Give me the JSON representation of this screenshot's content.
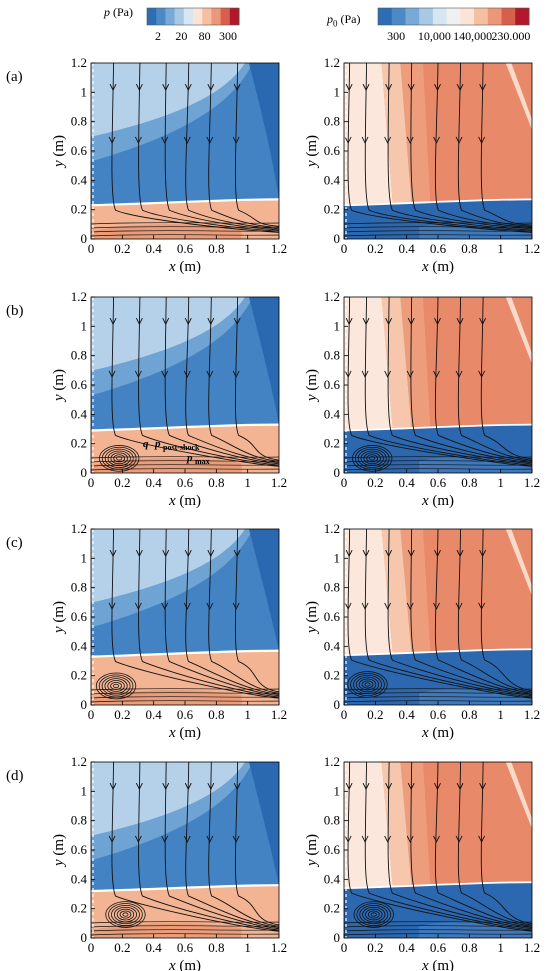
{
  "colorbars": [
    {
      "label_sym": "p",
      "label_sub": "",
      "label_unit": " (Pa)",
      "colors": [
        "#2c6db3",
        "#4c8ac6",
        "#79aad7",
        "#a7c9e6",
        "#d6e6f3",
        "#fbe3d6",
        "#f5bfa0",
        "#ec967a",
        "#d6604d",
        "#b2182b"
      ],
      "ticks": [
        "2",
        "20",
        "80",
        "300"
      ]
    },
    {
      "label_sym": "p",
      "label_sub": "0",
      "label_unit": " (Pa)",
      "colors": [
        "#2c6db3",
        "#4c8ac6",
        "#79aad7",
        "#a7c9e6",
        "#d6e6f3",
        "#f0f0f0",
        "#fbe3d6",
        "#f5bfa0",
        "#ec967a",
        "#d6604d",
        "#b2182b"
      ],
      "ticks": [
        "300",
        "10,000",
        "140,000",
        "230.000"
      ]
    }
  ],
  "chart_data": [
    {
      "type": "heatmap",
      "panel": "(a)",
      "variable": "p (Pa)",
      "xlabel": "x (m)",
      "ylabel": "y (m)",
      "xlim": [
        0,
        1.2
      ],
      "ylim": [
        0,
        1.2
      ],
      "xticks": [
        "0",
        "0.2",
        "0.4",
        "0.6",
        "0.8",
        "1",
        "1.2"
      ],
      "yticks": [
        "0",
        "0.2",
        "0.4",
        "0.6",
        "0.8",
        "1",
        "1.2"
      ],
      "shock_height": 0.23,
      "vortex": null
    },
    {
      "type": "heatmap",
      "panel": "",
      "variable": "p0 (Pa)",
      "xlabel": "x (m)",
      "ylabel": "y (m)",
      "xlim": [
        0,
        1.2
      ],
      "ylim": [
        0,
        1.2
      ],
      "xticks": [
        "0",
        "0.2",
        "0.4",
        "0.6",
        "0.8",
        "1",
        "1.2"
      ],
      "yticks": [
        "0",
        "0.2",
        "0.4",
        "0.6",
        "0.8",
        "1",
        "1.2"
      ],
      "shock_height": 0.23,
      "vortex": null
    },
    {
      "type": "heatmap",
      "panel": "(b)",
      "variable": "p (Pa)",
      "xlabel": "x (m)",
      "ylabel": "y (m)",
      "xlim": [
        0,
        1.2
      ],
      "ylim": [
        0,
        1.2
      ],
      "xticks": [
        "0",
        "0.2",
        "0.4",
        "0.6",
        "0.8",
        "1",
        "1.2"
      ],
      "yticks": [
        "0",
        "0.2",
        "0.4",
        "0.6",
        "0.8",
        "1",
        "1.2"
      ],
      "shock_height": 0.29,
      "vortex": [
        0.18,
        0.1
      ],
      "annotations": [
        "q",
        "p",
        "post-shock",
        "p",
        "max"
      ]
    },
    {
      "type": "heatmap",
      "panel": "",
      "variable": "p0 (Pa)",
      "xlabel": "x (m)",
      "ylabel": "y (m)",
      "xlim": [
        0,
        1.2
      ],
      "ylim": [
        0,
        1.2
      ],
      "xticks": [
        "0",
        "0.2",
        "0.4",
        "0.6",
        "0.8",
        "1",
        "1.2"
      ],
      "yticks": [
        "0",
        "0.2",
        "0.4",
        "0.6",
        "0.8",
        "1",
        "1.2"
      ],
      "shock_height": 0.29,
      "vortex": [
        0.18,
        0.1
      ]
    },
    {
      "type": "heatmap",
      "panel": "(c)",
      "variable": "p (Pa)",
      "xlabel": "x (m)",
      "ylabel": "y (m)",
      "xlim": [
        0,
        1.2
      ],
      "ylim": [
        0,
        1.2
      ],
      "xticks": [
        "0",
        "0.2",
        "0.4",
        "0.6",
        "0.8",
        "1",
        "1.2"
      ],
      "yticks": [
        "0",
        "0.2",
        "0.4",
        "0.6",
        "0.8",
        "1",
        "1.2"
      ],
      "shock_height": 0.33,
      "vortex": [
        0.16,
        0.13
      ]
    },
    {
      "type": "heatmap",
      "panel": "",
      "variable": "p0 (Pa)",
      "xlabel": "x (m)",
      "ylabel": "y (m)",
      "xlim": [
        0,
        1.2
      ],
      "ylim": [
        0,
        1.2
      ],
      "xticks": [
        "0",
        "0.2",
        "0.4",
        "0.6",
        "0.8",
        "1",
        "1.2"
      ],
      "yticks": [
        "0",
        "0.2",
        "0.4",
        "0.6",
        "0.8",
        "1",
        "1.2"
      ],
      "shock_height": 0.34,
      "vortex": [
        0.15,
        0.14
      ]
    },
    {
      "type": "heatmap",
      "panel": "(d)",
      "variable": "p (Pa)",
      "xlabel": "x (m)",
      "ylabel": "y (m)",
      "xlim": [
        0,
        1.2
      ],
      "ylim": [
        0,
        1.2
      ],
      "xticks": [
        "0",
        "0.2",
        "0.4",
        "0.6",
        "0.8",
        "1",
        "1.2"
      ],
      "yticks": [
        "0",
        "0.2",
        "0.4",
        "0.6",
        "0.8",
        "1",
        "1.2"
      ],
      "shock_height": 0.32,
      "vortex": [
        0.22,
        0.16
      ]
    },
    {
      "type": "heatmap",
      "panel": "",
      "variable": "p0 (Pa)",
      "xlabel": "x (m)",
      "ylabel": "y (m)",
      "xlim": [
        0,
        1.2
      ],
      "ylim": [
        0,
        1.2
      ],
      "xticks": [
        "0",
        "0.2",
        "0.4",
        "0.6",
        "0.8",
        "1",
        "1.2"
      ],
      "yticks": [
        "0",
        "0.2",
        "0.4",
        "0.6",
        "0.8",
        "1",
        "1.2"
      ],
      "shock_height": 0.34,
      "vortex": [
        0.19,
        0.16
      ]
    }
  ],
  "colors": {
    "p_field": [
      "#b5d1ea",
      "#6fa3d3",
      "#4383c4",
      "#2a68b0"
    ],
    "p_layer": "#f3b493",
    "p_layer_dark": "#e38a66",
    "p0_field": [
      "#fbe7dc",
      "#f6c7ad",
      "#ee9d7c",
      "#e8896a"
    ],
    "p0_layer": "#2b68b0"
  }
}
